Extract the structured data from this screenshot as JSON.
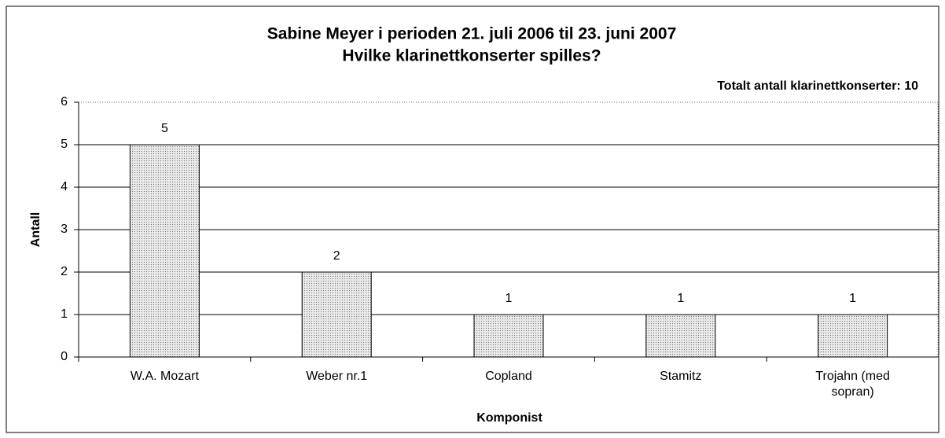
{
  "chart_data": {
    "type": "bar",
    "title": "Sabine Meyer i perioden 21. juli 2006 til 23. juni 2007",
    "subtitle": "Hvilke klarinettkonserter spilles?",
    "annotation": "Totalt antall klarinettkonserter: 10",
    "x_label": "Komponist",
    "y_label": "Antall",
    "categories": [
      "W.A. Mozart",
      "Weber nr.1",
      "Copland",
      "Stamitz",
      "Trojahn (med sopran)"
    ],
    "values": [
      5,
      2,
      1,
      1,
      1
    ],
    "color": "#d4d4d4",
    "ylim": [
      0,
      6
    ],
    "yticks": [
      0,
      1,
      2,
      3,
      4,
      5,
      6
    ],
    "grid": true
  }
}
